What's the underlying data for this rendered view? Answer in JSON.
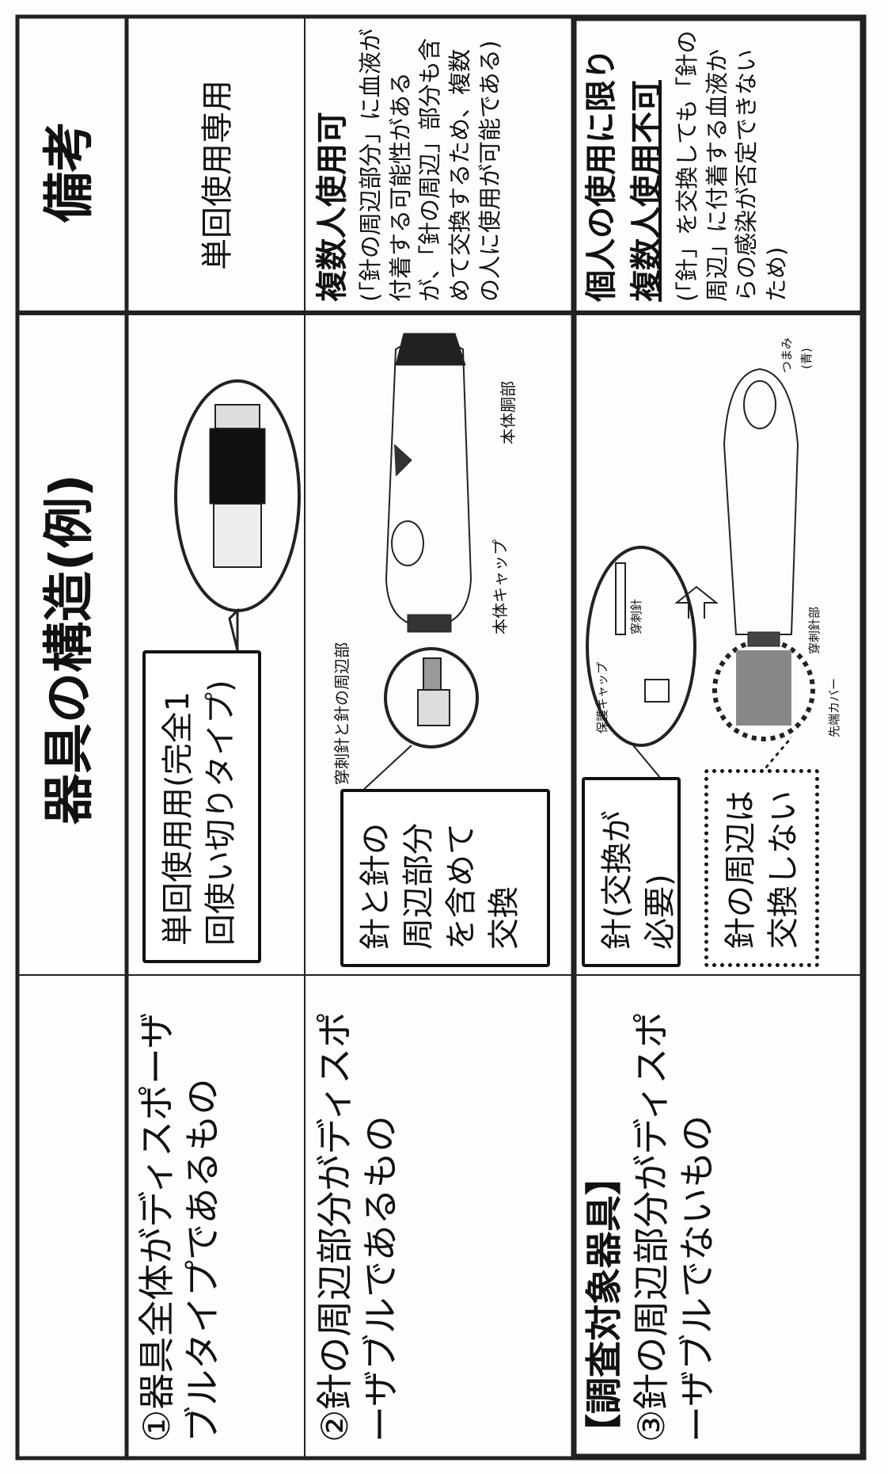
{
  "header": {
    "title": "器具の構造(例)",
    "remarks": "備考"
  },
  "rows": [
    {
      "type": "①器具全体がディスポーザブルタイプであるもの",
      "callout": "単回使用用(完全1回使い切りタイプ)",
      "remark": "単回使用専用"
    },
    {
      "type": "②針の周辺部分がディスポーザブルであるもの",
      "callout": "針と針の周辺部分を含めて交換",
      "labels": [
        "穿刺針と針の周辺部",
        "本体キャップ",
        "本体胴部"
      ],
      "remark": "複数人使用可",
      "note": "(「針の周辺部分」に血液が付着する可能性があるが、「針の周辺」部分も含めて交換するため、複数の人に使用が可能である)"
    },
    {
      "tag": "【調査対象器具】",
      "type": "③針の周辺部分がディスポーザブルでないもの",
      "callouts": [
        "針(交換が必要)",
        "針の周辺は交換しない"
      ],
      "labels": [
        "保護キャップ",
        "穿刺針",
        "先端カバー",
        "穿刺針部",
        "つまみ",
        "(青)"
      ],
      "remark": [
        "個人の使用に限り",
        "複数人使用不可"
      ],
      "note": "(「針」を交換しても「針の周辺」に付着する血液からの感染が否定できないため)"
    }
  ]
}
